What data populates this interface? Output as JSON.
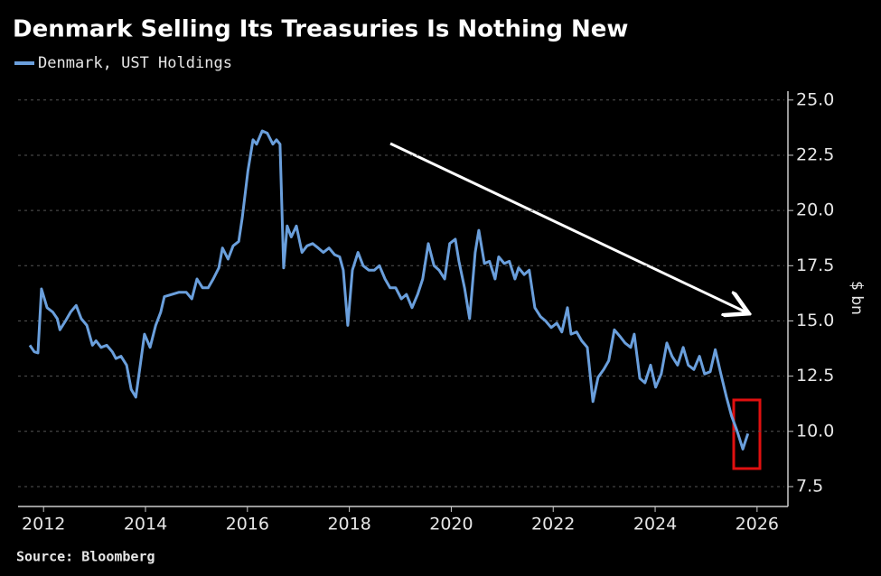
{
  "chart_data": {
    "type": "line",
    "title": "Denmark Selling Its Treasuries Is Nothing New",
    "source": "Source: Bloomberg",
    "y_label": "$ bn",
    "series": [
      {
        "name": "Denmark, UST Holdings",
        "color": "#6a9fdc",
        "x": [
          2011.73,
          2011.82,
          2011.89,
          2011.96,
          2012.07,
          2012.18,
          2012.27,
          2012.32,
          2012.43,
          2012.53,
          2012.64,
          2012.74,
          2012.85,
          2012.96,
          2013.03,
          2013.13,
          2013.24,
          2013.35,
          2013.42,
          2013.52,
          2013.63,
          2013.72,
          2013.81,
          2013.91,
          2013.98,
          2014.09,
          2014.2,
          2014.3,
          2014.37,
          2014.52,
          2014.66,
          2014.8,
          2014.91,
          2015.01,
          2015.12,
          2015.23,
          2015.33,
          2015.44,
          2015.51,
          2015.62,
          2015.72,
          2015.83,
          2015.9,
          2016.01,
          2016.11,
          2016.18,
          2016.29,
          2016.39,
          2016.5,
          2016.57,
          2016.64,
          2016.71,
          2016.78,
          2016.86,
          2016.96,
          2017.07,
          2017.17,
          2017.28,
          2017.39,
          2017.49,
          2017.6,
          2017.71,
          2017.81,
          2017.88,
          2017.97,
          2018.06,
          2018.17,
          2018.27,
          2018.38,
          2018.49,
          2018.59,
          2018.7,
          2018.8,
          2018.91,
          2019.02,
          2019.12,
          2019.23,
          2019.34,
          2019.44,
          2019.55,
          2019.66,
          2019.76,
          2019.87,
          2019.97,
          2020.08,
          2020.15,
          2020.26,
          2020.36,
          2020.47,
          2020.54,
          2020.65,
          2020.75,
          2020.86,
          2020.93,
          2021.04,
          2021.14,
          2021.25,
          2021.32,
          2021.43,
          2021.53,
          2021.64,
          2021.75,
          2021.85,
          2021.96,
          2022.07,
          2022.17,
          2022.28,
          2022.35,
          2022.46,
          2022.56,
          2022.67,
          2022.78,
          2022.88,
          2022.99,
          2023.09,
          2023.2,
          2023.31,
          2023.41,
          2023.52,
          2023.59,
          2023.7,
          2023.8,
          2023.91,
          2024.01,
          2024.12,
          2024.23,
          2024.33,
          2024.44,
          2024.55,
          2024.65,
          2024.76,
          2024.87,
          2024.97,
          2025.08,
          2025.18,
          2025.29,
          2025.4,
          2025.5,
          2025.61,
          2025.72,
          2025.82
        ],
        "values": [
          13.9,
          13.6,
          13.55,
          16.45,
          15.6,
          15.4,
          15.1,
          14.6,
          15.0,
          15.4,
          15.7,
          15.1,
          14.8,
          13.9,
          14.1,
          13.8,
          13.9,
          13.6,
          13.3,
          13.4,
          13.0,
          11.9,
          11.55,
          13.2,
          14.4,
          13.8,
          14.8,
          15.4,
          16.1,
          16.2,
          16.3,
          16.3,
          16.0,
          16.9,
          16.5,
          16.5,
          16.9,
          17.4,
          18.3,
          17.8,
          18.4,
          18.6,
          19.7,
          21.8,
          23.2,
          23.0,
          23.6,
          23.5,
          23.0,
          23.2,
          23.0,
          17.4,
          19.3,
          18.8,
          19.3,
          18.1,
          18.4,
          18.5,
          18.3,
          18.1,
          18.3,
          18.0,
          17.9,
          17.3,
          14.8,
          17.3,
          18.1,
          17.5,
          17.3,
          17.3,
          17.5,
          16.9,
          16.5,
          16.5,
          16.0,
          16.2,
          15.6,
          16.2,
          16.9,
          18.5,
          17.5,
          17.3,
          16.9,
          18.5,
          18.7,
          17.7,
          16.5,
          15.1,
          18.1,
          19.1,
          17.6,
          17.7,
          16.9,
          17.9,
          17.6,
          17.7,
          16.9,
          17.4,
          17.1,
          17.3,
          15.6,
          15.2,
          15.0,
          14.7,
          14.9,
          14.5,
          15.6,
          14.4,
          14.5,
          14.1,
          13.8,
          11.35,
          12.45,
          12.8,
          13.2,
          14.6,
          14.3,
          14.0,
          13.8,
          14.4,
          12.4,
          12.2,
          13.0,
          12.0,
          12.6,
          14.0,
          13.4,
          13.0,
          13.8,
          13.0,
          12.8,
          13.4,
          12.6,
          12.7,
          13.7,
          12.6,
          11.55,
          10.7,
          10.0,
          9.2,
          9.9
        ]
      }
    ],
    "xlim": [
      2011.5,
      2026.57
    ],
    "xticks": [
      2012,
      2014,
      2016,
      2018,
      2020,
      2022,
      2024,
      2026
    ],
    "ylim": [
      6.6,
      25.4
    ],
    "yticks": [
      {
        "value": 7.5,
        "label": "7.5"
      },
      {
        "value": 10,
        "label": "10.0"
      },
      {
        "value": 12.5,
        "label": "12.5"
      },
      {
        "value": 15,
        "label": "15.0"
      },
      {
        "value": 17.5,
        "label": "17.5"
      },
      {
        "value": 20,
        "label": "20.0"
      },
      {
        "value": 22.5,
        "label": "22.5"
      },
      {
        "value": 25,
        "label": "25.0"
      }
    ],
    "grid": true
  }
}
